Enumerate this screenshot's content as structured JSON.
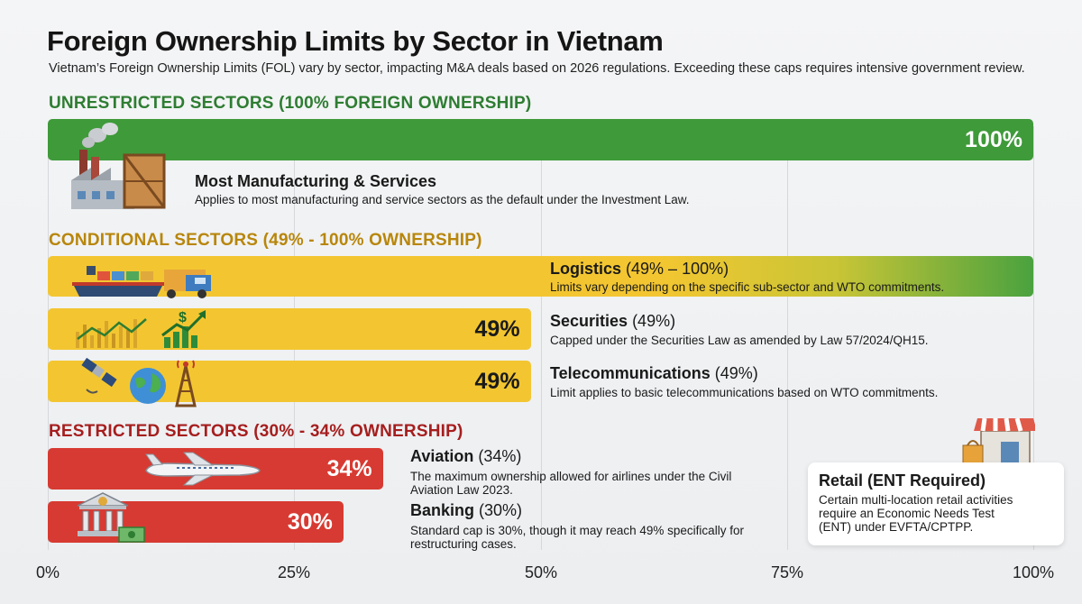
{
  "title": "Foreign Ownership Limits by Sector in Vietnam",
  "subtitle": "Vietnam’s Foreign Ownership Limits (FOL) vary by sector, impacting M&A deals based on 2026 regulations. Exceeding these caps requires intensive government review.",
  "colors": {
    "unrestricted": "#3f9a3a",
    "conditional": "#f3c631",
    "restricted": "#d73a32",
    "unrestricted_heading": "#2e7d32",
    "conditional_heading": "#b8860b",
    "restricted_heading": "#a61e1e"
  },
  "chart_data": {
    "type": "bar",
    "orientation": "horizontal",
    "xlim": [
      0,
      100
    ],
    "ticks": [
      "0%",
      "25%",
      "50%",
      "75%",
      "100%"
    ],
    "grid": true,
    "groups": [
      {
        "heading": "UNRESTRICTED SECTORS (100% FOREIGN OWNERSHIP)",
        "color": "#3f9a3a"
      },
      {
        "heading": "CONDITIONAL SECTORS (49% - 100% OWNERSHIP)",
        "color": "#f3c631"
      },
      {
        "heading": "RESTRICTED SECTORS (30% - 34% OWNERSHIP)",
        "color": "#d73a32"
      }
    ],
    "bars": [
      {
        "group": 0,
        "name": "Most Manufacturing & Services",
        "range": "",
        "value": 100,
        "label": "100%",
        "desc": "Applies to most manufacturing and service sectors as the default under the Investment Law.",
        "icon": "factory-icon"
      },
      {
        "group": 1,
        "name": "Logistics",
        "range": "(49% – 100%)",
        "value_min": 49,
        "value": 100,
        "label": "",
        "desc": "Limits vary depending on the specific sub-sector and WTO commitments.",
        "icon": "cargo-ship-truck-icon"
      },
      {
        "group": 1,
        "name": "Securities",
        "range": "(49%)",
        "value": 49,
        "label": "49%",
        "desc": "Capped under the Securities Law as amended by Law 57/2024/QH15.",
        "icon": "stock-chart-icon"
      },
      {
        "group": 1,
        "name": "Telecommunications",
        "range": "(49%)",
        "value": 49,
        "label": "49%",
        "desc": "Limit applies to basic telecommunications based on WTO commitments.",
        "icon": "satellite-globe-tower-icon"
      },
      {
        "group": 2,
        "name": "Aviation",
        "range": "(34%)",
        "value": 34,
        "label": "34%",
        "desc": "The maximum ownership allowed for airlines under the Civil Aviation Law 2023.",
        "icon": "airplane-icon"
      },
      {
        "group": 2,
        "name": "Banking",
        "range": "(30%)",
        "value": 30,
        "label": "30%",
        "desc": "Standard cap is 30%, though it may reach 49% specifically for restructuring cases.",
        "icon": "bank-icon"
      }
    ],
    "annotation": {
      "title": "Retail (ENT Required)",
      "text": "Certain multi-location retail activities require an Economic Needs Test (ENT) under EVFTA/CPTPP.",
      "icon": "shop-icon"
    }
  }
}
